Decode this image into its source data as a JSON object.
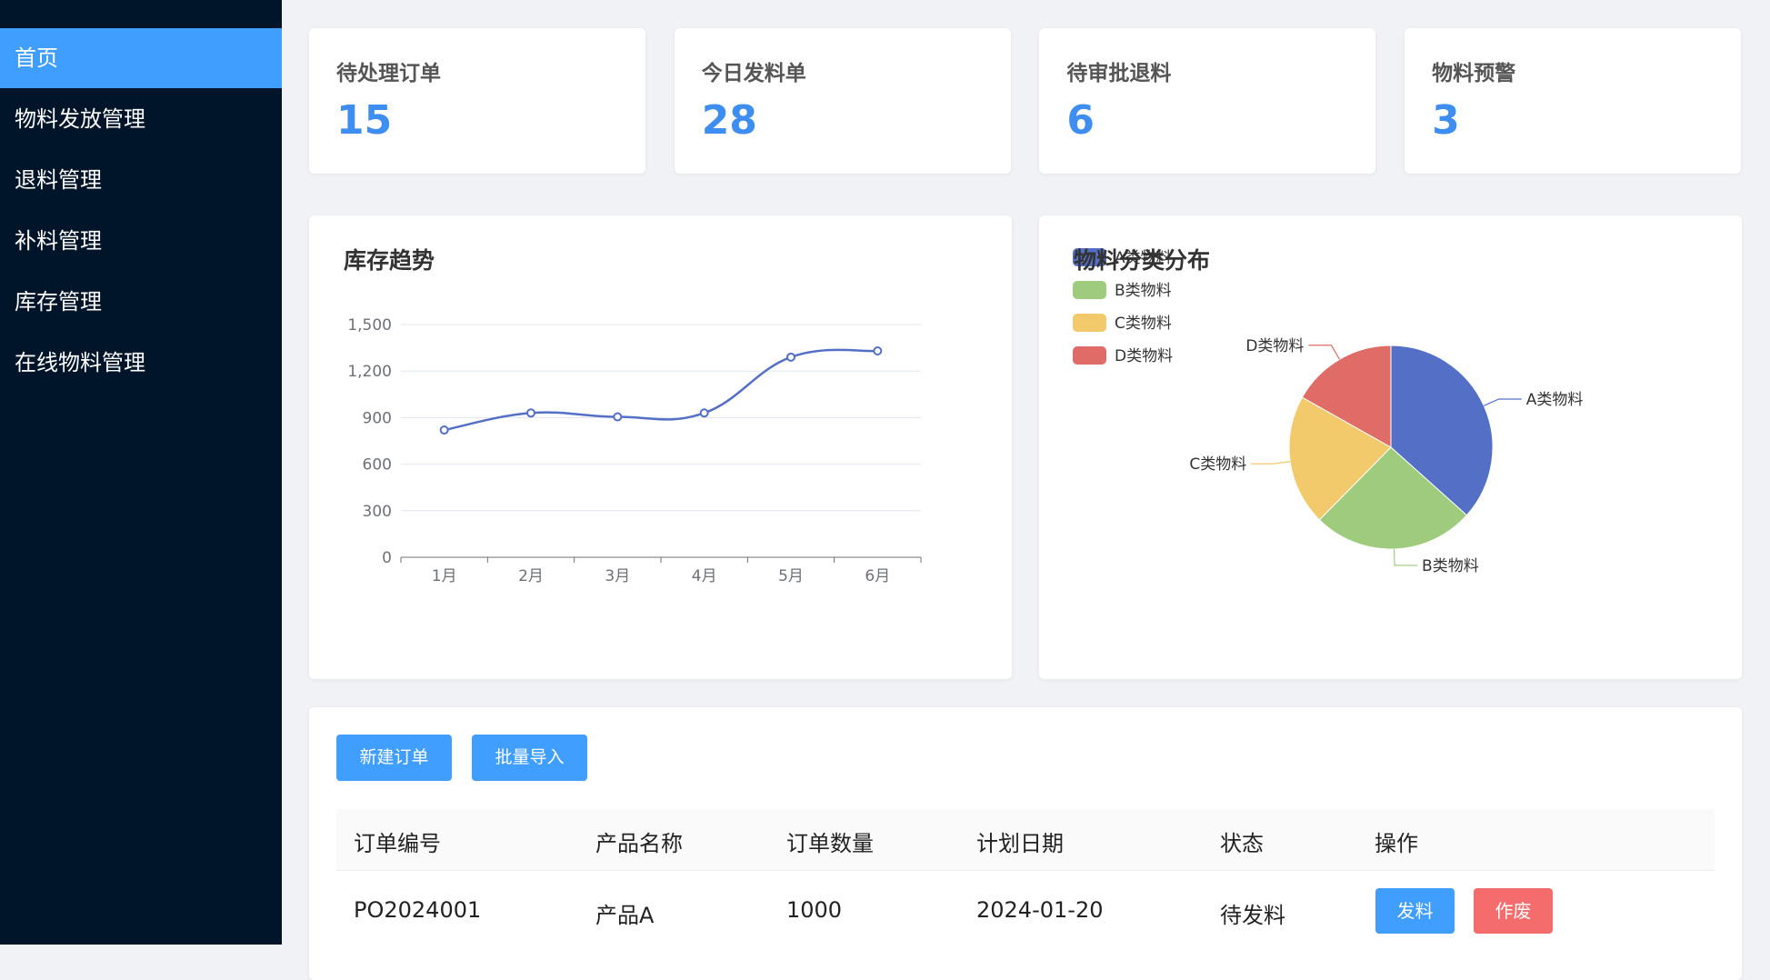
{
  "sidebar": {
    "items": [
      "首页",
      "物料发放管理",
      "退料管理",
      "补料管理",
      "库存管理",
      "在线物料管理"
    ]
  },
  "stats": [
    {
      "label": "待处理订单",
      "value": 15
    },
    {
      "label": "今日发料单",
      "value": 28
    },
    {
      "label": "待审批退料",
      "value": 6
    },
    {
      "label": "物料预警",
      "value": 3
    }
  ],
  "chart_data": [
    {
      "type": "line",
      "title": "库存趋势",
      "categories": [
        "1月",
        "2月",
        "3月",
        "4月",
        "5月",
        "6月"
      ],
      "values": [
        820,
        930,
        905,
        930,
        1290,
        1330
      ],
      "color": "#5470c6",
      "ylim": [
        0,
        1500
      ],
      "yticks": [
        0,
        300,
        600,
        900,
        {
          "value": 1200,
          "label": "1,200"
        },
        {
          "value": 1500,
          "label": "1,500"
        }
      ],
      "grid": true
    },
    {
      "type": "pie",
      "title": "物料分类分布",
      "categories": [
        "A类物料",
        "B类物料",
        "C类物料",
        "D类物料"
      ],
      "values": [
        37,
        26,
        21,
        17
      ],
      "colors": [
        "#5470c6",
        "#9fcb7c",
        "#f2c96b",
        "#e06c68"
      ]
    }
  ],
  "toolbar": [
    "新建订单",
    "批量导入"
  ],
  "table": {
    "headers": [
      "订单编号",
      "产品名称",
      "订单数量",
      "计划日期",
      "状态",
      "操作"
    ],
    "rows": [
      [
        "PO2024001",
        "产品A",
        1000,
        "2024-01-20",
        "待发料"
      ]
    ],
    "actions": [
      "发料",
      "作废"
    ]
  }
}
